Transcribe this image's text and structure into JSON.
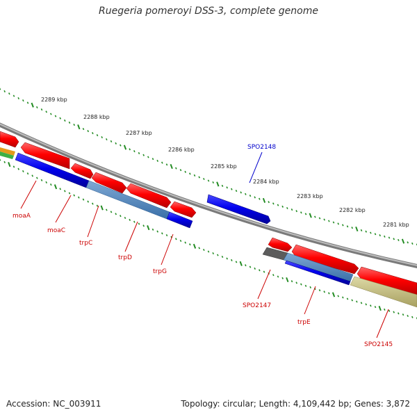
{
  "title": "Ruegeria pomeroyi DSS-3, complete genome",
  "footer": {
    "accession": "Accession: NC_003911",
    "summary": "Topology: circular; Length: 4,109,442 bp; Genes: 3,872"
  },
  "colors": {
    "forward_cds": "#ff0000",
    "reverse_cds": "#0000ee",
    "backbone": "#8c8c8c",
    "ticks": "#228b22",
    "label_red": "#cc0000",
    "label_blue": "#0000cc",
    "steelblue": "#4682b4",
    "khaki": "#bdb76b",
    "darkgray": "#666666"
  },
  "kbp_labels": [
    "2289 kbp",
    "2288 kbp",
    "2287 kbp",
    "2286 kbp",
    "2285 kbp",
    "2284 kbp",
    "2283 kbp",
    "2282 kbp",
    "2281 kbp"
  ],
  "genes": {
    "upper": [
      "SPO2148"
    ],
    "lower": [
      "moaA",
      "moaC",
      "trpC",
      "trpD",
      "trpG",
      "SPO2147",
      "trpE",
      "SPO2145"
    ]
  }
}
